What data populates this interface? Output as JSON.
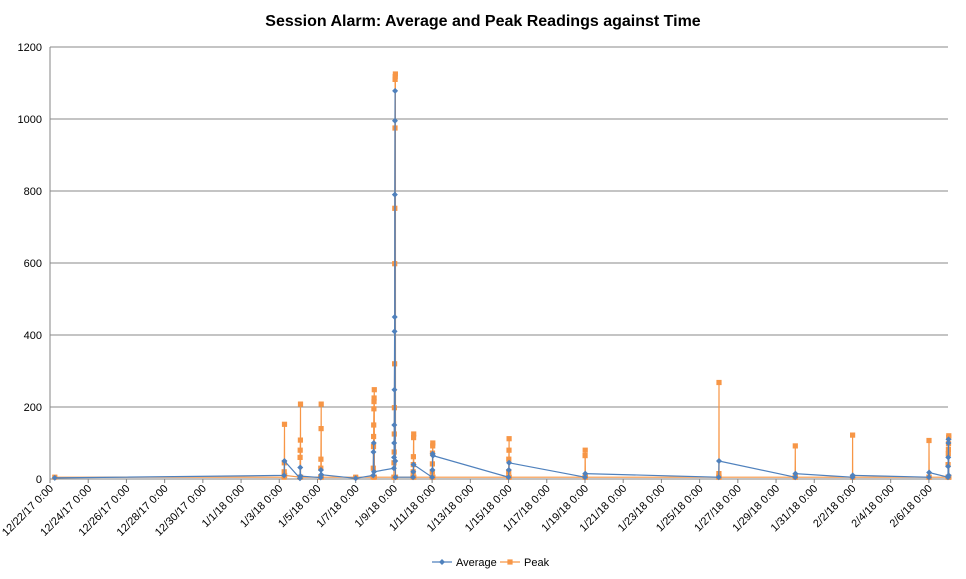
{
  "chart_data": {
    "type": "line",
    "title": "Session Alarm: Average and Peak Readings against Time",
    "xlabel": "",
    "ylabel": "",
    "ylim": [
      0,
      1200
    ],
    "yticks": [
      "0",
      "200",
      "400",
      "600",
      "800",
      "1000",
      "1200"
    ],
    "xlim": [
      "2017-12-22",
      "2018-02-07"
    ],
    "xtick_labels": [
      "12/22/17 0:00",
      "12/24/17 0:00",
      "12/26/17 0:00",
      "12/28/17 0:00",
      "12/30/17 0:00",
      "1/1/18 0:00",
      "1/3/18 0:00",
      "1/5/18 0:00",
      "1/7/18 0:00",
      "1/9/18 0:00",
      "1/11/18 0:00",
      "1/13/18 0:00",
      "1/15/18 0:00",
      "1/17/18 0:00",
      "1/19/18 0:00",
      "1/21/18 0:00",
      "1/23/18 0:00",
      "1/25/18 0:00",
      "1/27/18 0:00",
      "1/29/18 0:00",
      "1/31/18 0:00",
      "2/2/18 0:00",
      "2/4/18 0:00",
      "2/6/18 0:00"
    ],
    "grid": true,
    "legend_position": "bottom",
    "colors": {
      "Average": "#4f81bd",
      "Peak": "#f79646",
      "gridline": "#888888",
      "axis": "#868686"
    },
    "series": [
      {
        "name": "Average",
        "points": [
          [
            "2017-12-22 06:00",
            3
          ],
          [
            "2018-01-03 06:00",
            10
          ],
          [
            "2018-01-03 06:30",
            50
          ],
          [
            "2018-01-04 02:00",
            2
          ],
          [
            "2018-01-04 02:20",
            32
          ],
          [
            "2018-01-04 02:40",
            8
          ],
          [
            "2018-01-05 04:00",
            4
          ],
          [
            "2018-01-05 04:20",
            25
          ],
          [
            "2018-01-05 04:40",
            12
          ],
          [
            "2018-01-07 00:00",
            2
          ],
          [
            "2018-01-07 22:00",
            10
          ],
          [
            "2018-01-07 22:20",
            75
          ],
          [
            "2018-01-07 22:40",
            100
          ],
          [
            "2018-01-07 23:00",
            20
          ],
          [
            "2018-01-09 00:00",
            30
          ],
          [
            "2018-01-09 00:10",
            60
          ],
          [
            "2018-01-09 00:20",
            100
          ],
          [
            "2018-01-09 00:30",
            150
          ],
          [
            "2018-01-09 00:40",
            248
          ],
          [
            "2018-01-09 00:50",
            410
          ],
          [
            "2018-01-09 01:00",
            450
          ],
          [
            "2018-01-09 01:10",
            790
          ],
          [
            "2018-01-09 01:20",
            995
          ],
          [
            "2018-01-09 01:30",
            1078
          ],
          [
            "2018-01-09 01:40",
            50
          ],
          [
            "2018-01-09 01:50",
            5
          ],
          [
            "2018-01-10 00:00",
            5
          ],
          [
            "2018-01-10 00:20",
            20
          ],
          [
            "2018-01-10 00:40",
            40
          ],
          [
            "2018-01-11 00:00",
            5
          ],
          [
            "2018-01-11 00:20",
            25
          ],
          [
            "2018-01-11 00:40",
            70
          ],
          [
            "2018-01-11 01:00",
            65
          ],
          [
            "2018-01-15 00:00",
            5
          ],
          [
            "2018-01-15 00:20",
            25
          ],
          [
            "2018-01-15 00:40",
            45
          ],
          [
            "2018-01-19 00:00",
            5
          ],
          [
            "2018-01-19 00:20",
            15
          ],
          [
            "2018-01-26 00:00",
            5
          ],
          [
            "2018-01-26 00:20",
            50
          ],
          [
            "2018-01-30 00:00",
            5
          ],
          [
            "2018-01-30 00:20",
            15
          ],
          [
            "2018-02-02 00:00",
            5
          ],
          [
            "2018-02-02 00:20",
            10
          ],
          [
            "2018-02-06 00:00",
            5
          ],
          [
            "2018-02-06 00:20",
            18
          ],
          [
            "2018-02-07 00:00",
            5
          ],
          [
            "2018-02-07 00:10",
            35
          ],
          [
            "2018-02-07 00:20",
            60
          ],
          [
            "2018-02-07 00:30",
            100
          ],
          [
            "2018-02-07 00:40",
            110
          ],
          [
            "2018-02-07 00:50",
            10
          ]
        ]
      },
      {
        "name": "Peak",
        "points": [
          [
            "2017-12-22 06:00",
            5
          ],
          [
            "2018-01-03 06:00",
            5
          ],
          [
            "2018-01-03 06:10",
            20
          ],
          [
            "2018-01-03 06:20",
            45
          ],
          [
            "2018-01-03 06:30",
            152
          ],
          [
            "2018-01-03 06:40",
            10
          ],
          [
            "2018-01-04 02:00",
            5
          ],
          [
            "2018-01-04 02:10",
            60
          ],
          [
            "2018-01-04 02:20",
            80
          ],
          [
            "2018-01-04 02:30",
            108
          ],
          [
            "2018-01-04 02:40",
            208
          ],
          [
            "2018-01-04 02:50",
            5
          ],
          [
            "2018-01-05 04:00",
            5
          ],
          [
            "2018-01-05 04:10",
            30
          ],
          [
            "2018-01-05 04:20",
            55
          ],
          [
            "2018-01-05 04:30",
            140
          ],
          [
            "2018-01-05 04:40",
            208
          ],
          [
            "2018-01-05 04:50",
            5
          ],
          [
            "2018-01-07 00:00",
            5
          ],
          [
            "2018-01-07 22:00",
            5
          ],
          [
            "2018-01-07 22:10",
            30
          ],
          [
            "2018-01-07 22:20",
            90
          ],
          [
            "2018-01-07 22:30",
            118
          ],
          [
            "2018-01-07 22:40",
            150
          ],
          [
            "2018-01-07 22:50",
            195
          ],
          [
            "2018-01-07 23:00",
            215
          ],
          [
            "2018-01-07 23:10",
            225
          ],
          [
            "2018-01-07 23:20",
            248
          ],
          [
            "2018-01-07 23:30",
            5
          ],
          [
            "2018-01-09 00:00",
            5
          ],
          [
            "2018-01-09 00:10",
            45
          ],
          [
            "2018-01-09 00:20",
            75
          ],
          [
            "2018-01-09 00:30",
            125
          ],
          [
            "2018-01-09 00:40",
            198
          ],
          [
            "2018-01-09 00:50",
            320
          ],
          [
            "2018-01-09 01:00",
            598
          ],
          [
            "2018-01-09 01:10",
            752
          ],
          [
            "2018-01-09 01:20",
            975
          ],
          [
            "2018-01-09 01:30",
            1110
          ],
          [
            "2018-01-09 01:40",
            1118
          ],
          [
            "2018-01-09 01:50",
            1125
          ],
          [
            "2018-01-09 02:00",
            5
          ],
          [
            "2018-01-10 00:00",
            5
          ],
          [
            "2018-01-10 00:10",
            20
          ],
          [
            "2018-01-10 00:20",
            40
          ],
          [
            "2018-01-10 00:30",
            62
          ],
          [
            "2018-01-10 00:40",
            115
          ],
          [
            "2018-01-10 00:50",
            125
          ],
          [
            "2018-01-10 01:00",
            5
          ],
          [
            "2018-01-11 00:00",
            5
          ],
          [
            "2018-01-11 00:10",
            20
          ],
          [
            "2018-01-11 00:20",
            42
          ],
          [
            "2018-01-11 00:30",
            72
          ],
          [
            "2018-01-11 00:40",
            92
          ],
          [
            "2018-01-11 00:50",
            100
          ],
          [
            "2018-01-11 01:00",
            5
          ],
          [
            "2018-01-15 00:00",
            5
          ],
          [
            "2018-01-15 00:10",
            20
          ],
          [
            "2018-01-15 00:20",
            55
          ],
          [
            "2018-01-15 00:30",
            80
          ],
          [
            "2018-01-15 00:40",
            112
          ],
          [
            "2018-01-15 00:50",
            5
          ],
          [
            "2018-01-19 00:00",
            5
          ],
          [
            "2018-01-19 00:10",
            65
          ],
          [
            "2018-01-19 00:20",
            80
          ],
          [
            "2018-01-19 00:30",
            5
          ],
          [
            "2018-01-26 00:00",
            5
          ],
          [
            "2018-01-26 00:10",
            15
          ],
          [
            "2018-01-26 00:20",
            268
          ],
          [
            "2018-01-26 00:30",
            5
          ],
          [
            "2018-01-30 00:00",
            5
          ],
          [
            "2018-01-30 00:10",
            92
          ],
          [
            "2018-01-30 00:20",
            5
          ],
          [
            "2018-02-02 00:00",
            5
          ],
          [
            "2018-02-02 00:10",
            122
          ],
          [
            "2018-02-02 00:20",
            5
          ],
          [
            "2018-02-06 00:00",
            5
          ],
          [
            "2018-02-06 00:10",
            107
          ],
          [
            "2018-02-06 00:20",
            5
          ],
          [
            "2018-02-07 00:00",
            5
          ],
          [
            "2018-02-07 00:10",
            40
          ],
          [
            "2018-02-07 00:20",
            70
          ],
          [
            "2018-02-07 00:30",
            82
          ],
          [
            "2018-02-07 00:40",
            98
          ],
          [
            "2018-02-07 00:50",
            115
          ],
          [
            "2018-02-07 01:00",
            120
          ],
          [
            "2018-02-07 01:10",
            5
          ]
        ]
      }
    ]
  }
}
